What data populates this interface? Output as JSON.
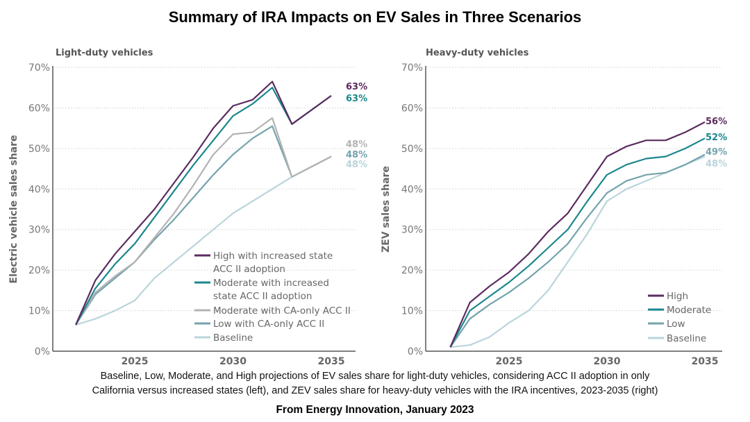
{
  "title": "Summary of IRA Impacts on EV Sales in Three Scenarios",
  "caption_line1": "Baseline, Low, Moderate, and High projections of EV sales share for light-duty vehicles, considering ACC II adoption in only",
  "caption_line2": "California versus increased states (left), and ZEV sales share for heavy-duty vehicles with the IRA incentives, 2023-2035 (right)",
  "source": "From Energy Innovation, January 2023",
  "chart_data": [
    {
      "type": "line",
      "title": "Light-duty vehicles",
      "xlabel": "",
      "ylabel": "Electric vehicle sales share",
      "x": [
        2022,
        2023,
        2024,
        2025,
        2026,
        2027,
        2028,
        2029,
        2030,
        2031,
        2032,
        2033,
        2034,
        2035
      ],
      "xticks": [
        "2025",
        "2030",
        "2035"
      ],
      "xtick_values": [
        2025,
        2030,
        2035
      ],
      "yticks": [
        "0%",
        "10%",
        "20%",
        "30%",
        "40%",
        "50%",
        "60%",
        "70%"
      ],
      "ylim": [
        0,
        70
      ],
      "grid": "horizontal dotted",
      "legend": "bottom-right",
      "series": [
        {
          "name": "High with increased state ACC II adoption",
          "legend_lines": [
            "High with increased state",
            "ACC II adoption"
          ],
          "color": "#5b2c5f",
          "end_label": "63%",
          "values": [
            6.5,
            17.5,
            24,
            29.5,
            35,
            41.5,
            48,
            55,
            60.5,
            62,
            66.5,
            56,
            59.5,
            63
          ]
        },
        {
          "name": "Moderate with increased state ACC II adoption",
          "legend_lines": [
            "Moderate with increased",
            "state ACC II adoption"
          ],
          "color": "#1b878c",
          "end_label": "63%",
          "values": [
            6.5,
            15.5,
            21.5,
            26.5,
            33,
            39.5,
            46,
            52,
            58,
            61,
            65,
            56,
            59.5,
            63
          ]
        },
        {
          "name": "Moderate with CA-only ACC II",
          "legend_lines": [
            "Moderate with CA-only ACC II"
          ],
          "color": "#b3b3b3",
          "end_label": "48%",
          "values": [
            6.5,
            14.5,
            18.5,
            22,
            28,
            34,
            41,
            48.5,
            53.5,
            54,
            57.5,
            43,
            45.5,
            48
          ]
        },
        {
          "name": "Low with CA-only ACC II",
          "legend_lines": [
            "Low with CA-only ACC II"
          ],
          "color": "#74a3ad",
          "end_label": "48%",
          "values": [
            6.5,
            14,
            18,
            22,
            27.5,
            32.5,
            38,
            43.5,
            48.5,
            52.5,
            55.5,
            43,
            45.5,
            48
          ]
        },
        {
          "name": "Baseline",
          "legend_lines": [
            "Baseline"
          ],
          "color": "#b9d5db",
          "end_label": "48%",
          "values": [
            6.5,
            8,
            10,
            12.5,
            18,
            22,
            26,
            30,
            34,
            37,
            40,
            43,
            45.5,
            48
          ]
        }
      ]
    },
    {
      "type": "line",
      "title": "Heavy-duty vehicles",
      "xlabel": "",
      "ylabel": "ZEV sales share",
      "x": [
        2022,
        2023,
        2024,
        2025,
        2026,
        2027,
        2028,
        2029,
        2030,
        2031,
        2032,
        2033,
        2034,
        2035
      ],
      "xticks": [
        "2025",
        "2030",
        "2035"
      ],
      "xtick_values": [
        2025,
        2030,
        2035
      ],
      "yticks": [
        "0%",
        "10%",
        "20%",
        "30%",
        "40%",
        "50%",
        "60%",
        "70%"
      ],
      "ylim": [
        0,
        70
      ],
      "grid": "horizontal dotted",
      "legend": "bottom-right",
      "series": [
        {
          "name": "High",
          "legend_lines": [
            "High"
          ],
          "color": "#5b2c5f",
          "end_label": "56%",
          "values": [
            1,
            12,
            16,
            19.5,
            24,
            29.5,
            34,
            41,
            48,
            50.5,
            52,
            52,
            54,
            56.5
          ]
        },
        {
          "name": "Moderate",
          "legend_lines": [
            "Moderate"
          ],
          "color": "#1b878c",
          "end_label": "52%",
          "values": [
            1,
            10,
            13.5,
            17,
            21,
            25.5,
            30,
            37,
            43.5,
            46,
            47.5,
            48,
            50,
            52.5
          ]
        },
        {
          "name": "Low",
          "legend_lines": [
            "Low"
          ],
          "color": "#74a3ad",
          "end_label": "49%",
          "values": [
            1,
            8,
            11.5,
            14.5,
            18,
            22,
            26.5,
            33,
            39,
            42,
            43.5,
            44,
            46,
            48.5
          ]
        },
        {
          "name": "Baseline",
          "legend_lines": [
            "Baseline"
          ],
          "color": "#b9d5db",
          "end_label": "48%",
          "values": [
            1,
            1.5,
            3.5,
            7,
            10,
            15,
            22,
            29,
            37,
            40,
            42,
            44,
            46,
            48
          ]
        }
      ]
    }
  ]
}
